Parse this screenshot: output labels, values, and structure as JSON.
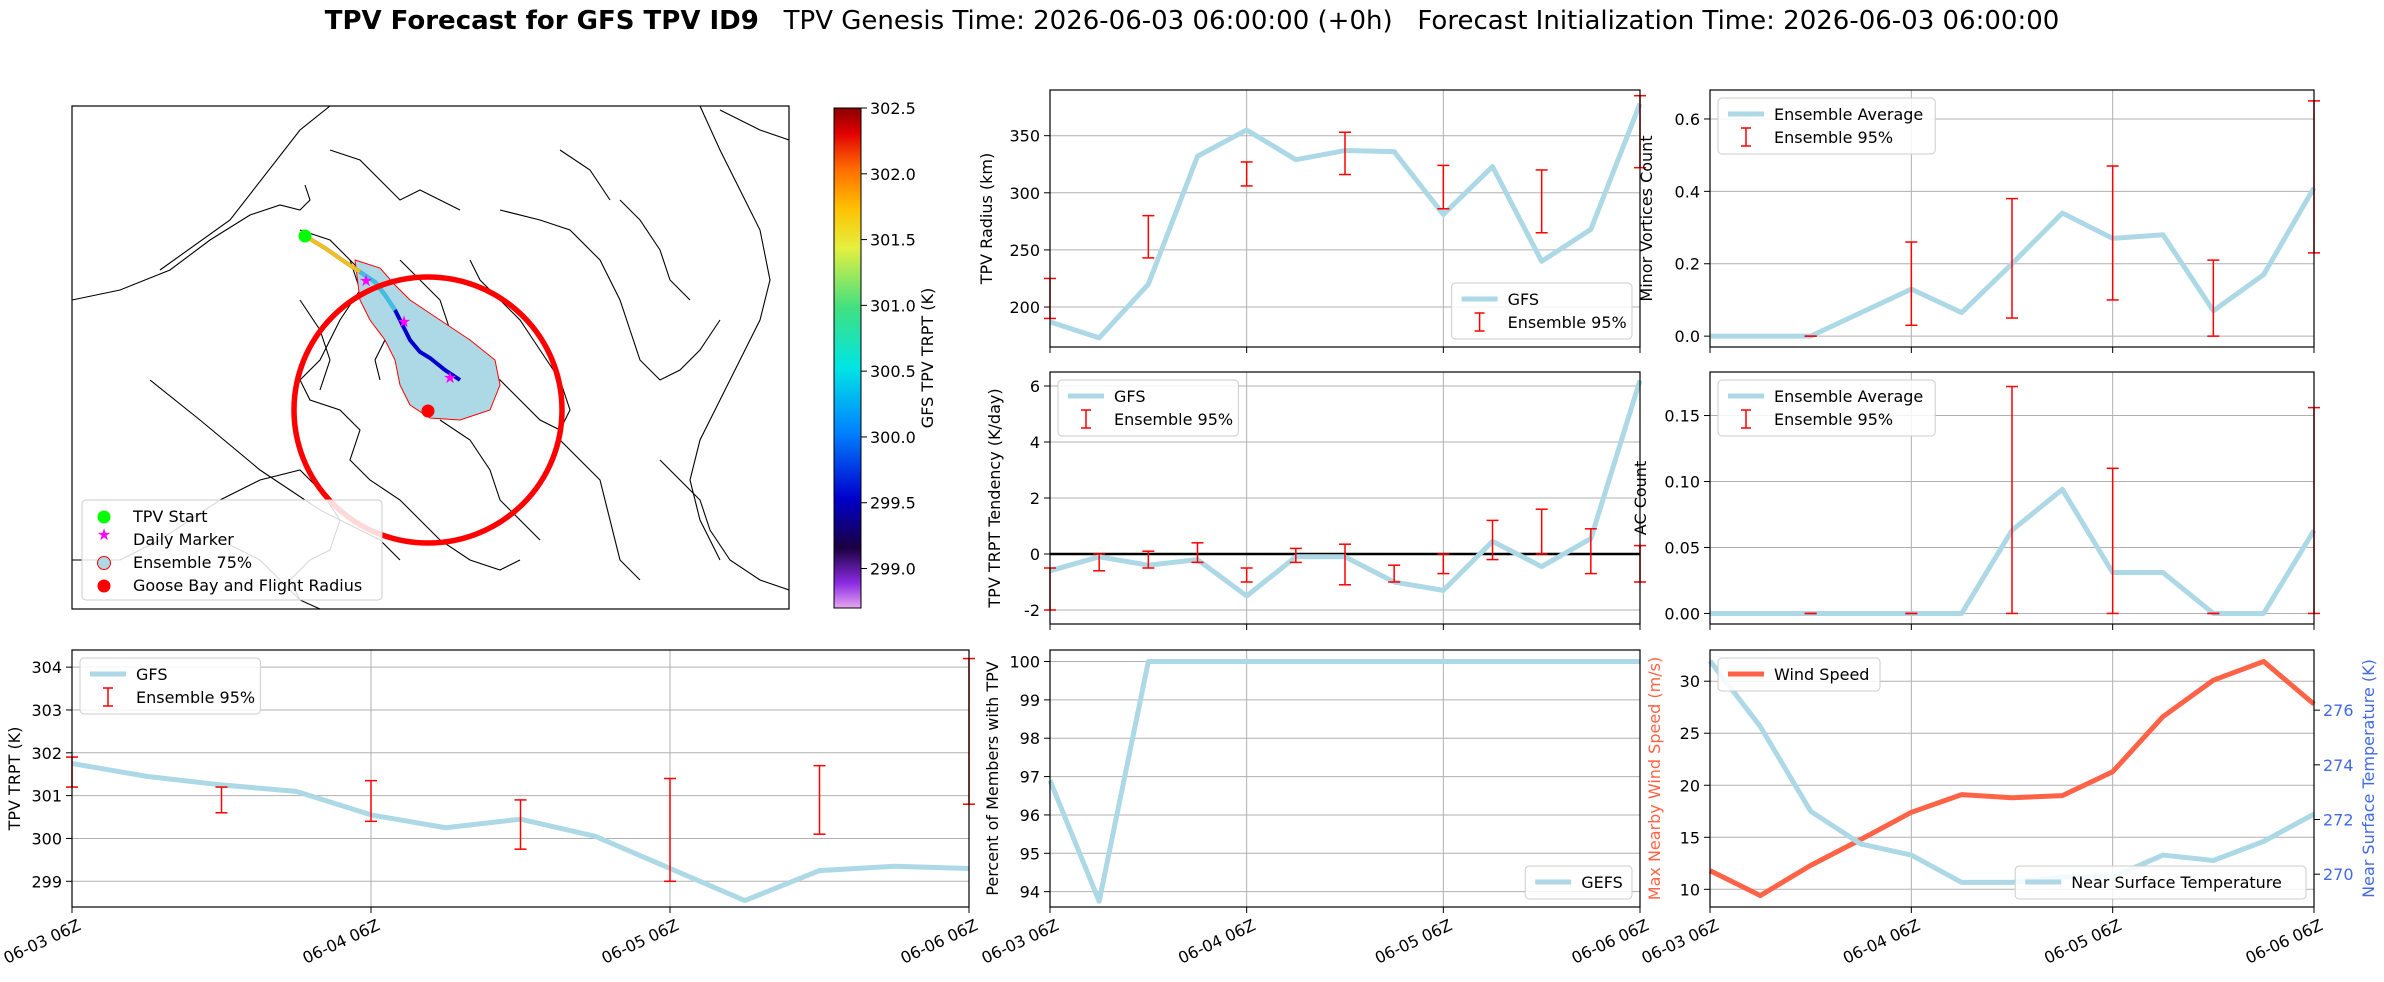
{
  "header": {
    "title_bold": "TPV Forecast for GFS TPV ID9",
    "title_rest": "   TPV Genesis Time: 2026-06-03 06:00:00 (+0h)   Forecast Initialization Time: 2026-06-03 06:00:00"
  },
  "colors": {
    "main_line": "#add8e6",
    "errorbar": "#ff0000",
    "wind": "#ff6347",
    "temp_axis": "#4169e1",
    "zero_line": "#000000",
    "flight_radius": "#ff0000",
    "tpv_start": "#00ff00",
    "daily_marker": "#ff00ff",
    "ensemble_area": "#add8e6"
  },
  "map_panel": {
    "legend": [
      "TPV Start",
      "Daily Marker",
      "Ensemble 75%",
      "Goose Bay and Flight Radius"
    ],
    "colorbar": {
      "label": "GFS TPV TRPT (K)",
      "ticks": [
        "302.5",
        "302.0",
        "301.5",
        "301.0",
        "300.5",
        "300.0",
        "299.5",
        "299.0"
      ],
      "range": [
        298.7,
        302.5
      ]
    }
  },
  "chart_data": [
    {
      "id": "tpv_radius",
      "type": "line",
      "ylabel": "TPV Radius (km)",
      "ylim": [
        165,
        390
      ],
      "yticks": [
        200,
        250,
        300,
        350
      ],
      "grid": true,
      "legend_placement": "lower-right",
      "legend": [
        "GFS",
        "Ensemble 95%"
      ],
      "x_hours": [
        0,
        6,
        12,
        18,
        24,
        30,
        36,
        42,
        48,
        54,
        60,
        66,
        72
      ],
      "series": [
        {
          "name": "GFS",
          "values": [
            187,
            173,
            220,
            332,
            355,
            329,
            337,
            336,
            281,
            323,
            240,
            268,
            378
          ]
        }
      ],
      "errorbars": [
        {
          "x": 0,
          "lo": 190,
          "hi": 225
        },
        {
          "x": 12,
          "lo": 243,
          "hi": 280
        },
        {
          "x": 24,
          "lo": 306,
          "hi": 327
        },
        {
          "x": 36,
          "lo": 316,
          "hi": 353
        },
        {
          "x": 48,
          "lo": 286,
          "hi": 324
        },
        {
          "x": 60,
          "lo": 265,
          "hi": 320
        },
        {
          "x": 72,
          "lo": 322,
          "hi": 385
        }
      ]
    },
    {
      "id": "minor_vortices",
      "type": "line",
      "ylabel": "Minor Vortices Count",
      "ylim": [
        -0.03,
        0.68
      ],
      "yticks": [
        "0.0",
        "0.2",
        "0.4",
        "0.6"
      ],
      "grid": true,
      "legend_placement": "top-left",
      "legend": [
        "Ensemble Average",
        "Ensemble 95%"
      ],
      "x_hours": [
        0,
        6,
        12,
        18,
        24,
        30,
        36,
        42,
        48,
        54,
        60,
        66,
        72
      ],
      "series": [
        {
          "name": "Ensemble Average",
          "values": [
            0.0,
            0.0,
            0.0,
            0.065,
            0.13,
            0.065,
            0.2,
            0.34,
            0.27,
            0.28,
            0.07,
            0.17,
            0.41
          ]
        }
      ],
      "errorbars": [
        {
          "x": 12,
          "lo": 0.0,
          "hi": 0.0
        },
        {
          "x": 24,
          "lo": 0.03,
          "hi": 0.26
        },
        {
          "x": 36,
          "lo": 0.05,
          "hi": 0.38
        },
        {
          "x": 48,
          "lo": 0.1,
          "hi": 0.47
        },
        {
          "x": 60,
          "lo": 0.0,
          "hi": 0.21
        },
        {
          "x": 72,
          "lo": 0.23,
          "hi": 0.65
        }
      ]
    },
    {
      "id": "trpt_tendency",
      "type": "line",
      "ylabel": "TPV TRPT Tendency (K/day)",
      "ylim": [
        -2.5,
        6.5
      ],
      "yticks": [
        -2,
        0,
        2,
        4,
        6
      ],
      "grid": true,
      "zero_line": true,
      "legend_placement": "top-left",
      "legend": [
        "GFS",
        "Ensemble 95%"
      ],
      "x_hours": [
        0,
        6,
        12,
        18,
        24,
        30,
        36,
        42,
        48,
        54,
        60,
        66,
        72
      ],
      "series": [
        {
          "name": "GFS",
          "values": [
            -0.6,
            -0.1,
            -0.4,
            -0.2,
            -1.5,
            -0.1,
            -0.1,
            -1.0,
            -1.3,
            0.45,
            -0.45,
            0.55,
            6.2
          ]
        }
      ],
      "errorbars": [
        {
          "x": 0,
          "lo": -2.0,
          "hi": -0.5
        },
        {
          "x": 6,
          "lo": -0.6,
          "hi": 0.0
        },
        {
          "x": 12,
          "lo": -0.5,
          "hi": 0.1
        },
        {
          "x": 18,
          "lo": -0.3,
          "hi": 0.4
        },
        {
          "x": 24,
          "lo": -1.0,
          "hi": -0.5
        },
        {
          "x": 30,
          "lo": -0.3,
          "hi": 0.2
        },
        {
          "x": 36,
          "lo": -1.1,
          "hi": 0.35
        },
        {
          "x": 42,
          "lo": -1.0,
          "hi": -0.4
        },
        {
          "x": 48,
          "lo": -0.7,
          "hi": 0.0
        },
        {
          "x": 54,
          "lo": -0.2,
          "hi": 1.2
        },
        {
          "x": 60,
          "lo": 0.0,
          "hi": 1.6
        },
        {
          "x": 66,
          "lo": -0.7,
          "hi": 0.9
        },
        {
          "x": 72,
          "lo": -1.0,
          "hi": 0.3
        }
      ]
    },
    {
      "id": "ac_count",
      "type": "line",
      "ylabel": "AC Count",
      "ylim": [
        -0.008,
        0.183
      ],
      "yticks": [
        "0.00",
        "0.05",
        "0.10",
        "0.15"
      ],
      "grid": true,
      "legend_placement": "top-left",
      "legend": [
        "Ensemble Average",
        "Ensemble 95%"
      ],
      "x_hours": [
        0,
        6,
        12,
        18,
        24,
        30,
        36,
        42,
        48,
        54,
        60,
        66,
        72
      ],
      "series": [
        {
          "name": "Ensemble Average",
          "values": [
            0.0,
            0.0,
            0.0,
            0.0,
            0.0,
            0.0,
            0.063,
            0.094,
            0.031,
            0.031,
            0.0,
            0.0,
            0.063
          ]
        }
      ],
      "errorbars": [
        {
          "x": 12,
          "lo": 0.0,
          "hi": 0.0
        },
        {
          "x": 24,
          "lo": 0.0,
          "hi": 0.0
        },
        {
          "x": 36,
          "lo": 0.0,
          "hi": 0.172
        },
        {
          "x": 48,
          "lo": 0.0,
          "hi": 0.11
        },
        {
          "x": 60,
          "lo": 0.0,
          "hi": 0.0
        },
        {
          "x": 72,
          "lo": 0.0,
          "hi": 0.156
        }
      ]
    },
    {
      "id": "tpv_trpt",
      "type": "line",
      "ylabel": "TPV TRPT (K)",
      "ylim": [
        298.4,
        304.4
      ],
      "yticks": [
        299,
        300,
        301,
        302,
        303,
        304
      ],
      "grid": true,
      "legend_placement": "top-left",
      "legend": [
        "GFS",
        "Ensemble 95%"
      ],
      "x_hours": [
        0,
        6,
        12,
        18,
        24,
        30,
        36,
        42,
        48,
        54,
        60,
        66,
        72
      ],
      "x_ticks": [
        "06-03 06Z",
        "06-04 06Z",
        "06-05 06Z",
        "06-06 06Z"
      ],
      "series": [
        {
          "name": "GFS",
          "values": [
            301.75,
            301.45,
            301.25,
            301.1,
            300.55,
            300.25,
            300.45,
            300.05,
            299.3,
            298.55,
            299.25,
            299.35,
            299.3
          ]
        }
      ],
      "errorbars": [
        {
          "x": 0,
          "lo": 301.2,
          "hi": 301.9
        },
        {
          "x": 12,
          "lo": 300.6,
          "hi": 301.2
        },
        {
          "x": 24,
          "lo": 300.4,
          "hi": 301.35
        },
        {
          "x": 36,
          "lo": 299.75,
          "hi": 300.9
        },
        {
          "x": 48,
          "lo": 299.0,
          "hi": 301.4
        },
        {
          "x": 60,
          "lo": 300.1,
          "hi": 301.7
        },
        {
          "x": 72,
          "lo": 300.8,
          "hi": 304.2
        }
      ]
    },
    {
      "id": "percent_members",
      "type": "line",
      "ylabel": "Percent of Members with TPV",
      "ylim": [
        93.6,
        100.3
      ],
      "yticks": [
        94,
        95,
        96,
        97,
        98,
        99,
        100
      ],
      "grid": true,
      "legend_placement": "lower-right",
      "legend": [
        "GEFS"
      ],
      "x_hours": [
        0,
        6,
        12,
        18,
        24,
        30,
        36,
        42,
        48,
        54,
        60,
        66,
        72
      ],
      "x_ticks": [
        "06-03 06Z",
        "06-04 06Z",
        "06-05 06Z",
        "06-06 06Z"
      ],
      "series": [
        {
          "name": "GEFS",
          "values": [
            96.9,
            93.75,
            100,
            100,
            100,
            100,
            100,
            100,
            100,
            100,
            100,
            100,
            100
          ]
        }
      ]
    },
    {
      "id": "wind_temp",
      "type": "line",
      "ylabel": "Max Nearby Wind Speed (m/s)",
      "ylabel_right": "Near Surface Temperature (K)",
      "ylim": [
        8.3,
        33.0
      ],
      "yticks": [
        10,
        15,
        20,
        25,
        30
      ],
      "ylim_right": [
        268.8,
        278.2
      ],
      "yticks_right": [
        270,
        272,
        274,
        276
      ],
      "grid": true,
      "legend": [
        "Wind Speed",
        "Near Surface Temperature"
      ],
      "x_hours": [
        0,
        6,
        12,
        18,
        24,
        30,
        36,
        42,
        48,
        54,
        60,
        66,
        72
      ],
      "x_ticks": [
        "06-03 06Z",
        "06-04 06Z",
        "06-05 06Z",
        "06-06 06Z"
      ],
      "series": [
        {
          "name": "Wind Speed",
          "axis": "left",
          "values": [
            11.8,
            9.4,
            12.3,
            14.8,
            17.4,
            19.1,
            18.8,
            19.0,
            21.3,
            26.6,
            30.1,
            31.9,
            27.8
          ]
        },
        {
          "name": "Near Surface Temperature",
          "axis": "right",
          "values": [
            277.8,
            275.4,
            272.3,
            271.1,
            270.7,
            269.7,
            269.7,
            269.9,
            269.9,
            270.7,
            270.5,
            271.2,
            272.2
          ]
        }
      ]
    }
  ]
}
